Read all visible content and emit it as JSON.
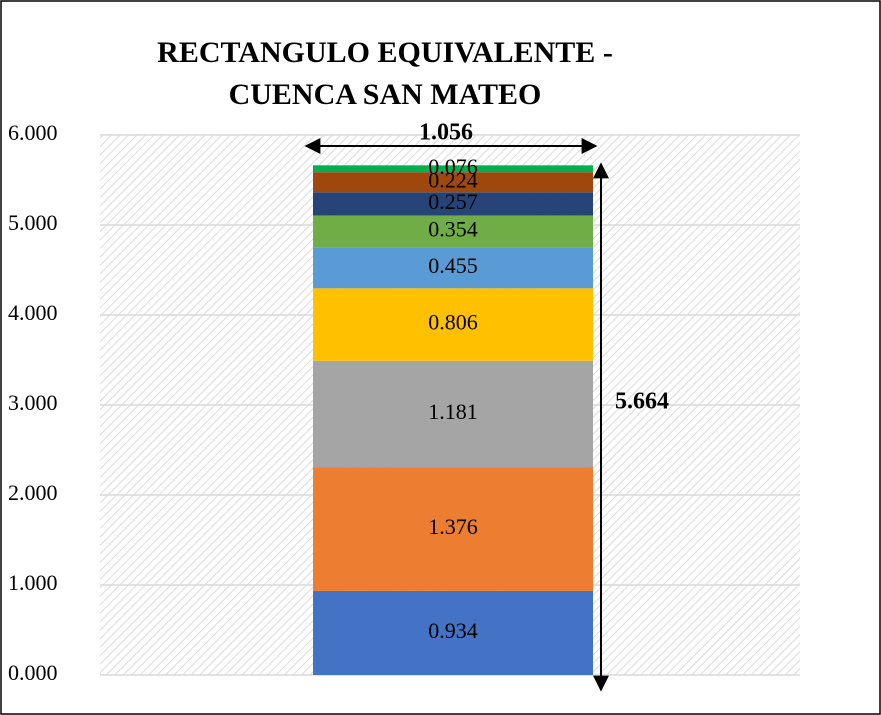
{
  "chart_data": {
    "type": "stacked_bar",
    "title": [
      "RECTANGULO EQUIVALENTE -",
      "CUENCA SAN MATEO"
    ],
    "values": [
      0.934,
      1.376,
      1.181,
      0.806,
      0.455,
      0.354,
      0.257,
      0.224,
      0.076
    ],
    "colors": [
      "#4472c4",
      "#ed7d31",
      "#a5a5a5",
      "#ffc000",
      "#5b9bd5",
      "#70ad47",
      "#264478",
      "#9e480e",
      "#00b050"
    ],
    "ylim": [
      0,
      6
    ],
    "yticks": [
      {
        "value": 0,
        "label": "0.000"
      },
      {
        "value": 1,
        "label": "1.000"
      },
      {
        "value": 2,
        "label": "2.000"
      },
      {
        "value": 3,
        "label": "3.000"
      },
      {
        "value": 4,
        "label": "4.000"
      },
      {
        "value": 5,
        "label": "5.000"
      },
      {
        "value": 6,
        "label": "6.000"
      }
    ],
    "grid": true,
    "annotations": {
      "width": "1.056",
      "height": "5.664"
    }
  }
}
